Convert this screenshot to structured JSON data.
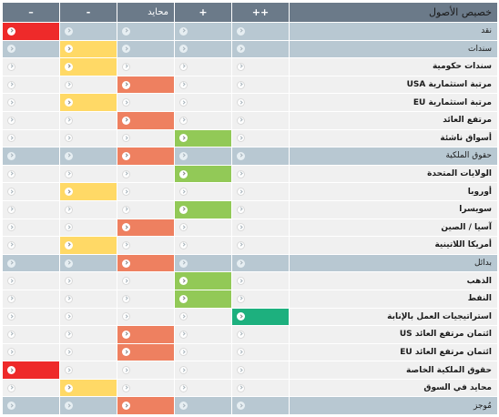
{
  "header": {
    "label": "خصيص الأصول",
    "columns": [
      "++",
      "+",
      "محايد",
      "-",
      "–"
    ]
  },
  "colors": {
    "dd": "#ee2a2a",
    "d": "#ffd966",
    "n": "#ee8060",
    "p": "#92c957",
    "pp": "#1db07e"
  },
  "rows": [
    {
      "label": "نقد",
      "type": "category",
      "sel": "dd"
    },
    {
      "label": "سندات",
      "type": "category",
      "sel": "d"
    },
    {
      "label": "سندات حكومية",
      "type": "asset",
      "sel": "d"
    },
    {
      "label": "USA مرتبة استثمارية",
      "type": "asset",
      "sel": "n"
    },
    {
      "label": "EU مرتبة استثمارية",
      "type": "asset",
      "sel": "d"
    },
    {
      "label": "مرتفع العائد",
      "type": "asset",
      "sel": "n"
    },
    {
      "label": "أسواق ناشئة",
      "type": "asset",
      "sel": "p"
    },
    {
      "label": "حقوق الملكية",
      "type": "category",
      "sel": "n"
    },
    {
      "label": "الولايات المتحدة",
      "type": "asset",
      "sel": "p"
    },
    {
      "label": "أوروبا",
      "type": "asset",
      "sel": "d"
    },
    {
      "label": "سويسرا",
      "type": "asset",
      "sel": "p"
    },
    {
      "label": "آسيا / الصين",
      "type": "asset",
      "sel": "n"
    },
    {
      "label": "أمريكا اللاتينية",
      "type": "asset",
      "sel": "d"
    },
    {
      "label": "بدائل",
      "type": "category",
      "sel": "n"
    },
    {
      "label": "الذهب",
      "type": "asset",
      "sel": "p"
    },
    {
      "label": "النفط",
      "type": "asset",
      "sel": "p"
    },
    {
      "label": "استراتيجيات العمل بالإنابة",
      "type": "asset",
      "sel": "pp"
    },
    {
      "label": "US ائتمان مرتفع العائد",
      "type": "asset",
      "sel": "n"
    },
    {
      "label": "EU ائتمان مرتفع العائد",
      "type": "asset",
      "sel": "n"
    },
    {
      "label": "حقوق الملكية الخاصة",
      "type": "asset",
      "sel": "dd"
    },
    {
      "label": "محايد في السوق",
      "type": "asset",
      "sel": "d"
    },
    {
      "label": "مُوجز",
      "type": "category",
      "sel": "n"
    }
  ]
}
